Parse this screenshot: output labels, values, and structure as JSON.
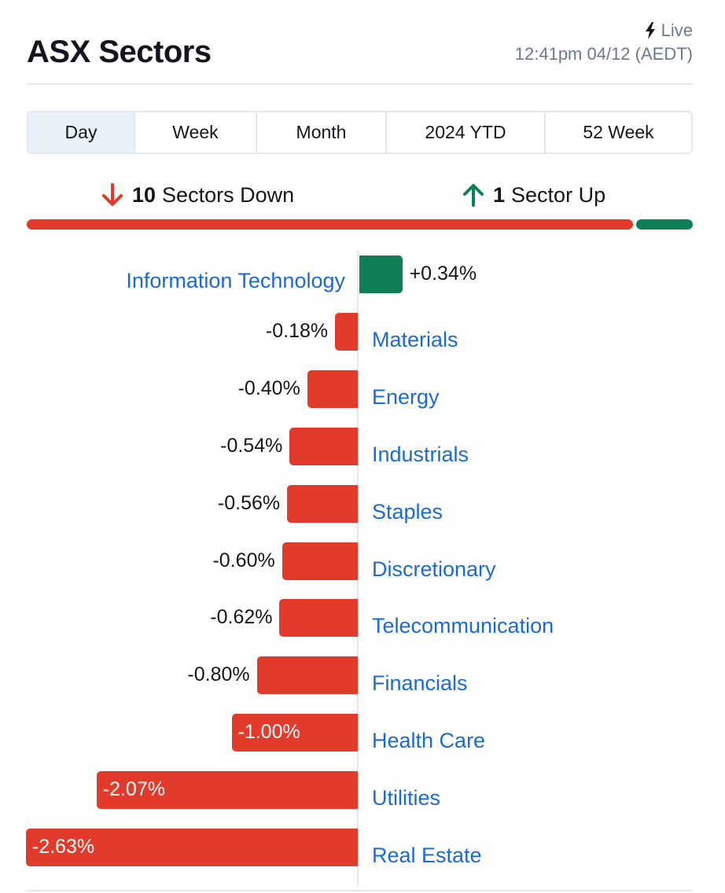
{
  "header": {
    "title": "ASX Sectors",
    "live_label": "Live",
    "timestamp": "12:41pm 04/12 (AEDT)"
  },
  "tabs": [
    {
      "label": "Day",
      "active": true
    },
    {
      "label": "Week",
      "active": false
    },
    {
      "label": "Month",
      "active": false
    },
    {
      "label": "2024 YTD",
      "active": false
    },
    {
      "label": "52 Week",
      "active": false
    }
  ],
  "summary": {
    "down_count": "10",
    "down_label": "Sectors Down",
    "up_count": "1",
    "up_label": "Sector Up"
  },
  "colors": {
    "down": "#e23a2b",
    "up": "#0f7f56",
    "link": "#1b6ad2"
  },
  "icons": {
    "live": "lightning-bolt-icon",
    "down": "arrow-down-icon",
    "up": "arrow-up-icon"
  },
  "chart_data": {
    "type": "bar",
    "orientation": "horizontal",
    "categories": [
      "Information Technology",
      "Materials",
      "Energy",
      "Industrials",
      "Staples",
      "Discretionary",
      "Telecommunication",
      "Financials",
      "Health Care",
      "Utilities",
      "Real Estate"
    ],
    "values": [
      0.34,
      -0.18,
      -0.4,
      -0.54,
      -0.56,
      -0.6,
      -0.62,
      -0.8,
      -1.0,
      -2.07,
      -2.63
    ],
    "labels": [
      "+0.34%",
      "-0.18%",
      "-0.40%",
      "-0.54%",
      "-0.56%",
      "-0.60%",
      "-0.62%",
      "-0.80%",
      "-1.00%",
      "-2.07%",
      "-2.63%"
    ],
    "unit": "%"
  }
}
